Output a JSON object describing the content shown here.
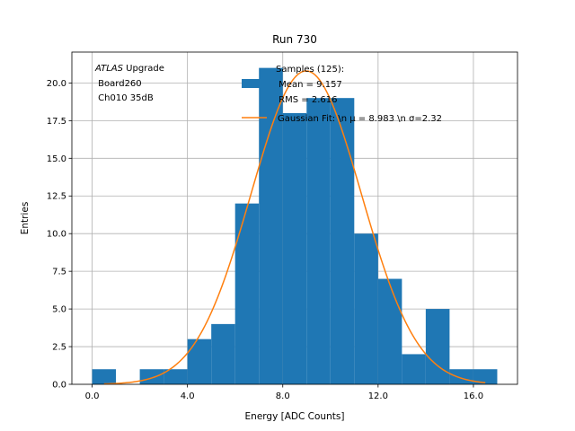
{
  "chart_data": {
    "type": "bar",
    "title": "Run 730",
    "xlabel": "Energy [ADC Counts]",
    "ylabel": "Entries",
    "xlim": [
      -0.85,
      17.85
    ],
    "ylim": [
      0,
      22.05
    ],
    "grid": true,
    "x_ticks": [
      0,
      4,
      8,
      12,
      16
    ],
    "x_tick_labels": [
      "0.0",
      "4.0",
      "8.0",
      "12.0",
      "16.0"
    ],
    "y_ticks": [
      0,
      2.5,
      5,
      7.5,
      10,
      12.5,
      15,
      17.5,
      20
    ],
    "y_tick_labels": [
      "0.0",
      "2.5",
      "5.0",
      "7.5",
      "10.0",
      "12.5",
      "15.0",
      "17.5",
      "20.0"
    ],
    "bin_edges": [
      0,
      1,
      2,
      3,
      4,
      5,
      6,
      7,
      8,
      9,
      10,
      11,
      12,
      13,
      14,
      15,
      16,
      17
    ],
    "series": [
      {
        "name": "Samples (125):\n Mean = 9.157\n RMS = 2.616",
        "type": "histogram",
        "color": "#1f77b4",
        "values": [
          1,
          0,
          1,
          1,
          3,
          4,
          12,
          21,
          18,
          19,
          19,
          10,
          7,
          2,
          5,
          1,
          1
        ]
      },
      {
        "name": "Gaussian Fit: \\n $\\mu$ = 8.983 \\n $\\sigma$=2.32",
        "type": "line",
        "color": "#ff7f0e",
        "fit": {
          "function": "gaussian",
          "amplitude": 20.8,
          "mu": 8.983,
          "sigma": 2.32,
          "x_range": [
            0.5,
            16.5
          ]
        }
      }
    ],
    "legend": {
      "placement": "upper-right",
      "entries": [
        {
          "label_lines": [
            "Samples (125):",
            " Mean = 9.157",
            " RMS = 2.616"
          ]
        },
        {
          "label_lines": [
            "Gaussian Fit: \\n μ = 8.983 \\n σ=2.32"
          ]
        }
      ]
    },
    "annotation": {
      "line1_italic": "ATLAS",
      "line1_rest": " Upgrade",
      "line2": " Board260",
      "line3": " Ch010 35dB"
    }
  }
}
